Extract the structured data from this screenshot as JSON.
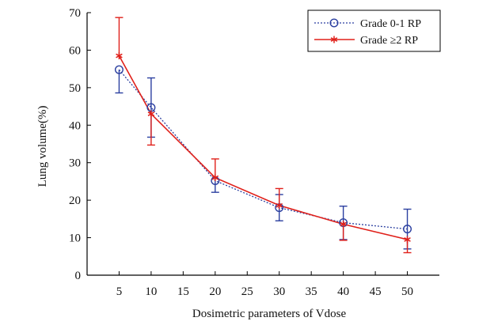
{
  "chart_data": {
    "type": "line",
    "xlabel": "Dosimetric parameters of Vdose",
    "ylabel": "Lung volume(%)",
    "xlim": [
      0,
      55
    ],
    "ylim": [
      0,
      70
    ],
    "xticks": [
      5,
      10,
      15,
      20,
      25,
      30,
      35,
      40,
      45,
      50
    ],
    "yticks": [
      0,
      10,
      20,
      30,
      40,
      50,
      60,
      70
    ],
    "grid": false,
    "legend_position": "top-right",
    "series": [
      {
        "name": "Grade 0-1 RP",
        "color": "#2b3fa0",
        "line_style": "dotted",
        "marker": "open-circle",
        "x": [
          5,
          10,
          20,
          30,
          40,
          50
        ],
        "y": [
          54.8,
          44.7,
          25.2,
          18.0,
          14.0,
          12.3
        ],
        "err_low": [
          48.6,
          36.8,
          22.1,
          14.5,
          9.5,
          7.0
        ],
        "err_high": [
          null,
          52.6,
          null,
          21.5,
          18.4,
          17.6
        ]
      },
      {
        "name": "Grade ≥2 RP",
        "color": "#e0201a",
        "line_style": "solid",
        "marker": "asterisk",
        "x": [
          5,
          10,
          20,
          30,
          40,
          50
        ],
        "y": [
          58.5,
          43.0,
          26.0,
          18.6,
          13.6,
          9.5
        ],
        "err_low": [
          null,
          34.7,
          null,
          null,
          9.3,
          6.0
        ],
        "err_high": [
          68.7,
          null,
          31.0,
          23.1,
          null,
          null
        ]
      }
    ]
  }
}
